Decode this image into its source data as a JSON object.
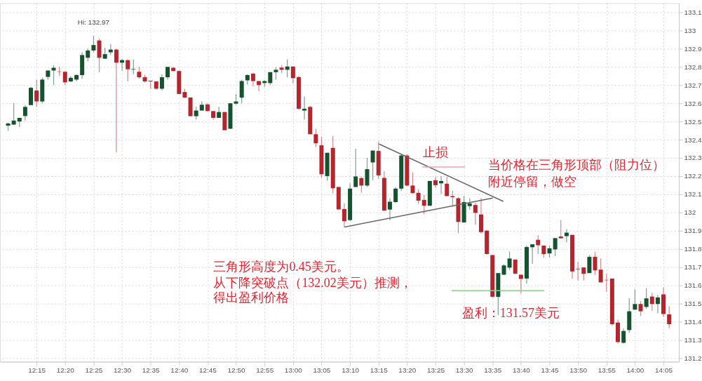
{
  "chart_data": {
    "type": "candlestick",
    "x": [
      12.1667,
      12.1833,
      12.2,
      12.2167,
      12.2333,
      12.25,
      12.2667,
      12.2833,
      12.3,
      12.3167,
      12.3333,
      12.35,
      12.3667,
      12.3833,
      12.4,
      12.4167,
      12.4333,
      12.45,
      12.4667,
      12.4833,
      12.5,
      12.5167,
      12.5333,
      12.55,
      12.5667,
      12.5833,
      12.6,
      12.6167,
      12.6333,
      12.65,
      12.6667,
      12.6833,
      12.7,
      12.7167,
      12.7333,
      12.75,
      12.7667,
      12.7833,
      12.8,
      12.8167,
      12.8333,
      12.85,
      12.8667,
      12.8833,
      12.9,
      12.9167,
      12.9333,
      12.95,
      12.9667,
      12.9833,
      13,
      13.0167,
      13.0333,
      13.05,
      13.0667,
      13.0833,
      13.1,
      13.1167,
      13.1333,
      13.15,
      13.1667,
      13.1833,
      13.2,
      13.2167,
      13.2333,
      13.25,
      13.2667,
      13.2833,
      13.3,
      13.3167,
      13.3333,
      13.35,
      13.3667,
      13.3833,
      13.4,
      13.4167,
      13.4333,
      13.45,
      13.4667,
      13.4833,
      13.5,
      13.5167,
      13.5333,
      13.55,
      13.5667,
      13.5833,
      13.6,
      13.6167,
      13.6333,
      13.65,
      13.6667,
      13.6833,
      13.7,
      13.7167,
      13.7333,
      13.75,
      13.7667,
      13.7833,
      13.8,
      13.8167,
      13.8333,
      13.85,
      13.8667,
      13.8833,
      13.9,
      13.9167,
      13.9333,
      13.95,
      13.9667,
      13.9833,
      14,
      14.0167,
      14.0333,
      14.05,
      14.0667,
      14.0833,
      14.1
    ],
    "ohlc": [
      [
        132.477,
        132.493,
        132.449,
        132.489
      ],
      [
        132.483,
        132.6,
        132.48,
        132.505
      ],
      [
        132.5,
        132.52,
        132.47,
        132.52
      ],
      [
        132.53,
        132.59,
        132.505,
        132.58
      ],
      [
        132.59,
        132.69,
        132.59,
        132.685
      ],
      [
        132.67,
        132.73,
        132.58,
        132.61
      ],
      [
        132.61,
        132.74,
        132.6,
        132.73
      ],
      [
        132.745,
        132.78,
        132.73,
        132.78
      ],
      [
        132.78,
        132.81,
        132.7,
        132.795
      ],
      [
        132.775,
        132.8,
        132.75,
        132.773
      ],
      [
        132.773,
        132.775,
        132.7,
        132.715
      ],
      [
        132.72,
        132.75,
        132.715,
        132.74
      ],
      [
        132.73,
        132.76,
        132.72,
        132.755
      ],
      [
        132.755,
        132.88,
        132.735,
        132.865
      ],
      [
        132.85,
        132.9,
        132.83,
        132.89
      ],
      [
        132.89,
        132.97,
        132.88,
        132.92
      ],
      [
        132.945,
        132.955,
        132.77,
        132.85
      ],
      [
        132.845,
        132.905,
        132.845,
        132.87
      ],
      [
        132.88,
        132.925,
        132.865,
        132.895
      ],
      [
        132.895,
        132.9,
        132.33,
        132.823
      ],
      [
        132.823,
        132.845,
        132.78,
        132.837
      ],
      [
        132.837,
        132.84,
        132.72,
        132.787
      ],
      [
        132.785,
        132.84,
        132.76,
        132.788
      ],
      [
        132.773,
        132.8,
        132.735,
        132.743
      ],
      [
        132.743,
        132.757,
        132.715,
        132.72
      ],
      [
        132.724,
        132.725,
        132.68,
        132.72
      ],
      [
        132.72,
        132.72,
        132.675,
        132.68
      ],
      [
        132.68,
        132.76,
        132.67,
        132.743
      ],
      [
        132.743,
        132.8,
        132.73,
        132.8
      ],
      [
        132.795,
        132.8,
        132.775,
        132.777
      ],
      [
        132.777,
        132.78,
        132.65,
        132.651
      ],
      [
        132.662,
        132.68,
        132.63,
        132.631
      ],
      [
        132.632,
        132.632,
        132.529,
        132.529
      ],
      [
        132.529,
        132.58,
        132.51,
        132.56
      ],
      [
        132.56,
        132.61,
        132.56,
        132.592
      ],
      [
        132.594,
        132.6,
        132.555,
        132.557
      ],
      [
        132.557,
        132.557,
        132.51,
        132.52
      ],
      [
        132.52,
        132.58,
        132.52,
        132.552
      ],
      [
        132.552,
        132.552,
        132.452,
        132.452
      ],
      [
        132.46,
        132.6,
        132.46,
        132.6
      ],
      [
        132.598,
        132.65,
        132.592,
        132.61
      ],
      [
        132.631,
        132.73,
        132.6,
        132.722
      ],
      [
        132.726,
        132.76,
        132.703,
        132.755
      ],
      [
        132.763,
        132.768,
        132.693,
        132.722
      ],
      [
        132.722,
        132.722,
        132.666,
        132.7
      ],
      [
        132.711,
        132.726,
        132.69,
        132.722
      ],
      [
        132.711,
        132.771,
        132.7,
        132.771
      ],
      [
        132.771,
        132.798,
        132.73,
        132.784
      ],
      [
        132.796,
        132.81,
        132.765,
        132.784
      ],
      [
        132.784,
        132.842,
        132.743,
        132.802
      ],
      [
        132.802,
        132.802,
        132.71,
        132.738
      ],
      [
        132.744,
        132.75,
        132.565,
        132.57
      ],
      [
        132.56,
        132.637,
        132.51,
        132.57
      ],
      [
        132.58,
        132.586,
        132.43,
        132.43
      ],
      [
        132.43,
        132.46,
        132.36,
        132.38
      ],
      [
        132.369,
        132.415,
        132.19,
        132.21
      ],
      [
        132.2,
        132.328,
        132.175,
        132.328
      ],
      [
        132.355,
        132.42,
        132.105,
        132.133
      ],
      [
        132.14,
        132.14,
        132.013,
        132.017
      ],
      [
        132.019,
        132.05,
        131.917,
        131.952
      ],
      [
        131.958,
        132.16,
        131.954,
        132.131
      ],
      [
        132.14,
        132.35,
        132.14,
        132.198
      ],
      [
        132.189,
        132.198,
        132.108,
        132.148
      ],
      [
        132.148,
        132.3,
        132.14,
        132.238
      ],
      [
        132.275,
        132.34,
        132.178,
        132.34
      ],
      [
        132.338,
        132.39,
        132.185,
        132.204
      ],
      [
        132.19,
        132.226,
        132.01,
        132.01
      ],
      [
        132.016,
        132.077,
        131.958,
        132.059
      ],
      [
        132.057,
        132.14,
        132.053,
        132.131
      ],
      [
        132.131,
        132.319,
        132.118,
        132.313
      ],
      [
        132.313,
        132.319,
        132.145,
        132.148
      ],
      [
        132.148,
        132.22,
        132.106,
        132.106
      ],
      [
        132.108,
        132.127,
        132.047,
        132.065
      ],
      [
        132.069,
        132.096,
        131.991,
        132.037
      ],
      [
        132.037,
        132.173,
        132.037,
        132.173
      ],
      [
        132.177,
        132.196,
        132.136,
        132.15
      ],
      [
        132.16,
        132.199,
        132.103,
        132.173
      ],
      [
        132.158,
        132.196,
        132.09,
        132.09
      ],
      [
        132.09,
        132.12,
        132.031,
        132.084
      ],
      [
        132.078,
        132.084,
        131.886,
        131.948
      ],
      [
        131.945,
        132.09,
        131.945,
        132.057
      ],
      [
        132.035,
        132.078,
        132.016,
        132.05
      ],
      [
        132.041,
        132.053,
        131.933,
        131.998
      ],
      [
        131.989,
        132.078,
        131.884,
        131.892
      ],
      [
        131.9,
        131.905,
        131.768,
        131.772
      ],
      [
        131.766,
        131.766,
        131.532,
        131.537
      ],
      [
        131.536,
        131.667,
        131.435,
        131.667
      ],
      [
        131.658,
        131.715,
        131.655,
        131.709
      ],
      [
        131.697,
        131.785,
        131.685,
        131.747
      ],
      [
        131.741,
        131.741,
        131.66,
        131.664
      ],
      [
        131.658,
        131.658,
        131.555,
        131.635
      ],
      [
        131.637,
        131.818,
        131.609,
        131.81
      ],
      [
        131.809,
        131.825,
        131.718,
        131.825
      ],
      [
        131.85,
        131.876,
        131.772,
        131.82
      ],
      [
        131.818,
        131.818,
        131.752,
        131.771
      ],
      [
        131.775,
        131.816,
        131.752,
        131.803
      ],
      [
        131.797,
        131.859,
        131.76,
        131.859
      ],
      [
        131.868,
        131.958,
        131.858,
        131.858
      ],
      [
        131.87,
        131.908,
        131.836,
        131.889
      ],
      [
        131.877,
        131.877,
        131.636,
        131.676
      ],
      [
        131.69,
        131.728,
        131.627,
        131.687
      ],
      [
        131.698,
        131.698,
        131.627,
        131.663
      ],
      [
        131.667,
        131.766,
        131.667,
        131.756
      ],
      [
        131.756,
        131.784,
        131.657,
        131.682
      ],
      [
        131.686,
        131.748,
        131.616,
        131.616
      ],
      [
        131.63,
        131.663,
        131.565,
        131.628
      ],
      [
        131.637,
        131.637,
        131.377,
        131.386
      ],
      [
        131.395,
        131.411,
        131.28,
        131.288
      ],
      [
        131.284,
        131.362,
        131.28,
        131.349
      ],
      [
        131.354,
        131.529,
        131.338,
        131.457
      ],
      [
        131.466,
        131.578,
        131.466,
        131.497
      ],
      [
        131.497,
        131.513,
        131.43,
        131.457
      ],
      [
        131.481,
        131.584,
        131.472,
        131.528
      ],
      [
        131.538,
        131.559,
        131.46,
        131.497
      ],
      [
        131.497,
        131.546,
        131.447,
        131.533
      ],
      [
        131.55,
        131.588,
        131.427,
        131.442
      ],
      [
        131.44,
        131.485,
        131.363,
        131.386
      ]
    ],
    "colors": [
      "#14532d",
      "#14532d",
      "#14532d",
      "#14532d",
      "#14532d",
      "#b3262e",
      "#14532d",
      "#14532d",
      "#14532d",
      "#b3262e",
      "#b3262e",
      "#14532d",
      "#14532d",
      "#14532d",
      "#14532d",
      "#14532d",
      "#b3262e",
      "#14532d",
      "#14532d",
      "#b3262e",
      "#14532d",
      "#b3262e",
      "#14532d",
      "#b3262e",
      "#b3262e",
      "#b3262e",
      "#b3262e",
      "#14532d",
      "#14532d",
      "#b3262e",
      "#b3262e",
      "#b3262e",
      "#b3262e",
      "#14532d",
      "#14532d",
      "#b3262e",
      "#b3262e",
      "#14532d",
      "#b3262e",
      "#14532d",
      "#14532d",
      "#14532d",
      "#14532d",
      "#b3262e",
      "#b3262e",
      "#14532d",
      "#14532d",
      "#14532d",
      "#b3262e",
      "#14532d",
      "#b3262e",
      "#b3262e",
      "#14532d",
      "#b3262e",
      "#b3262e",
      "#b3262e",
      "#14532d",
      "#b3262e",
      "#b3262e",
      "#b3262e",
      "#14532d",
      "#14532d",
      "#b3262e",
      "#14532d",
      "#14532d",
      "#b3262e",
      "#b3262e",
      "#14532d",
      "#14532d",
      "#14532d",
      "#b3262e",
      "#b3262e",
      "#b3262e",
      "#b3262e",
      "#14532d",
      "#b3262e",
      "#14532d",
      "#b3262e",
      "#b3262e",
      "#b3262e",
      "#14532d",
      "#14532d",
      "#b3262e",
      "#b3262e",
      "#b3262e",
      "#b3262e",
      "#14532d",
      "#14532d",
      "#14532d",
      "#b3262e",
      "#b3262e",
      "#14532d",
      "#14532d",
      "#b3262e",
      "#b3262e",
      "#14532d",
      "#14532d",
      "#b3262e",
      "#14532d",
      "#b3262e",
      "#b3262e",
      "#b3262e",
      "#14532d",
      "#b3262e",
      "#b3262e",
      "#b3262e",
      "#b3262e",
      "#b3262e",
      "#14532d",
      "#14532d",
      "#14532d",
      "#b3262e",
      "#14532d",
      "#b3262e",
      "#14532d",
      "#b3262e",
      "#b3262e"
    ],
    "series": [
      {
        "type": "line",
        "color": "#666666",
        "x": [
          13.2517,
          13.615
        ],
        "values": [
          132.376,
          132.061
        ]
      },
      {
        "type": "line",
        "color": "#666666",
        "x": [
          13.151,
          13.5843
        ],
        "values": [
          131.92,
          132.079
        ]
      },
      {
        "type": "line",
        "color": "#f2a0b0",
        "x": [
          13.3785,
          13.5033
        ],
        "values": [
          132.25,
          132.25
        ]
      },
      {
        "type": "line",
        "color": "#8fce8f",
        "x": [
          13.4633,
          13.735
        ],
        "values": [
          131.57,
          131.57
        ]
      }
    ],
    "annotations": [
      {
        "text": "Hi: 132.97",
        "x": 12.4167,
        "y": 132.97
      },
      "止损",
      "当价格在三角形顶部（阻力位）",
      "附近停留，做空",
      "盈利：131.57美元",
      "三角形高度为0.45美元。",
      "从下降突破点（132.02美元）推测，",
      "得出盈利价格"
    ],
    "xlim": [
      12.1533,
      14.1183
    ],
    "xticks": [
      {
        "value": 12.25,
        "label": "12:15"
      },
      {
        "value": 12.3333,
        "label": "12:20"
      },
      {
        "value": 12.4167,
        "label": "12:25"
      },
      {
        "value": 12.5,
        "label": "12:30"
      },
      {
        "value": 12.5833,
        "label": "12:35"
      },
      {
        "value": 12.6667,
        "label": "12:40"
      },
      {
        "value": 12.75,
        "label": "12:45"
      },
      {
        "value": 12.8333,
        "label": "12:50"
      },
      {
        "value": 12.9167,
        "label": "12:55"
      },
      {
        "value": 13,
        "label": "13:00"
      },
      {
        "value": 13.0833,
        "label": "13:05"
      },
      {
        "value": 13.1667,
        "label": "13:10"
      },
      {
        "value": 13.25,
        "label": "13:15"
      },
      {
        "value": 13.3333,
        "label": "13:20"
      },
      {
        "value": 13.4167,
        "label": "13:25"
      },
      {
        "value": 13.5,
        "label": "13:30"
      },
      {
        "value": 13.5833,
        "label": "13:35"
      },
      {
        "value": 13.6667,
        "label": "13:40"
      },
      {
        "value": 13.75,
        "label": "13:45"
      },
      {
        "value": 13.8333,
        "label": "13:50"
      },
      {
        "value": 13.9167,
        "label": "13:55"
      },
      {
        "value": 14,
        "label": "14:00"
      },
      {
        "value": 14.0833,
        "label": "14:05"
      }
    ],
    "ylim": [
      131.18,
      133.15
    ],
    "yticks": [
      133.1,
      133,
      132.9,
      132.8,
      132.7,
      132.6,
      132.5,
      132.4,
      132.3,
      132.2,
      132.1,
      132,
      131.9,
      131.8,
      131.7,
      131.6,
      131.5,
      131.4,
      131.3,
      131.2
    ],
    "grid": true
  }
}
